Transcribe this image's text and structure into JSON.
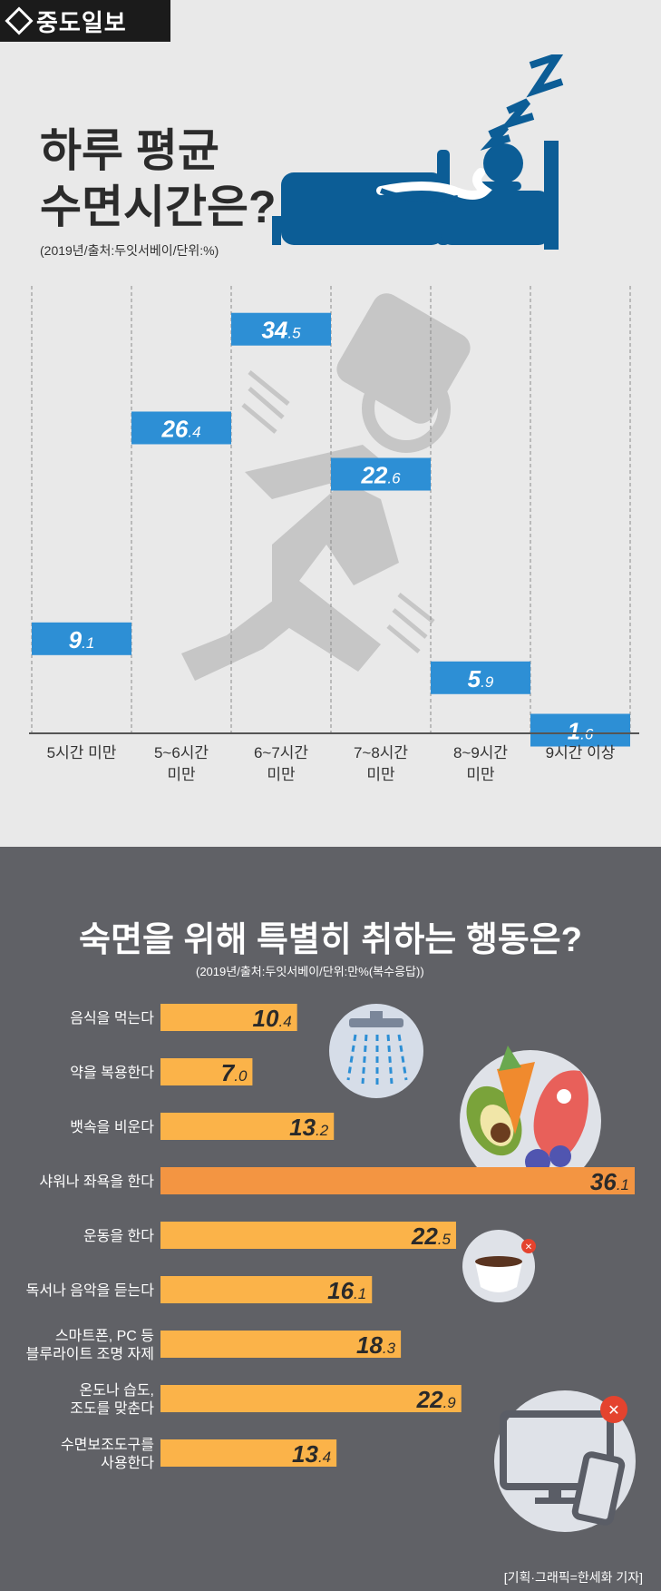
{
  "brand": {
    "name": "중도일보"
  },
  "section1": {
    "title_line1": "하루 평균",
    "title_line2": "수면시간은?",
    "note": "(2019년/출처:두잇서베이/단위:%)"
  },
  "section2": {
    "title": "숙면을 위해 특별히 취하는 행동은?",
    "note": "(2019년/출처:두잇서베이/단위:만%(복수응답))"
  },
  "credit": "[기획·그래픽=한세화 기자]",
  "colors": {
    "top_bg": "#e9e9e9",
    "bottom_bg": "#606166",
    "blue": "#2d8fd5",
    "navy": "#0c5d96",
    "yellow": "#fbb349",
    "orange": "#f39542",
    "silhouette": "#c6c6c6"
  },
  "icons": [
    "sleeping-person-icon",
    "walking-person-icon",
    "shower-icon",
    "food-plate-icon",
    "coffee-icon",
    "monitor-phone-icon"
  ],
  "chart_data": [
    {
      "type": "bar",
      "title": "하루 평균 수면시간은?",
      "unit": "%",
      "categories": [
        "5시간 미만",
        "5~6시간 미만",
        "6~7시간 미만",
        "7~8시간 미만",
        "8~9시간 미만",
        "9시간 이상"
      ],
      "category_lines": [
        [
          "5시간 미만"
        ],
        [
          "5~6시간",
          "미만"
        ],
        [
          "6~7시간",
          "미만"
        ],
        [
          "7~8시간",
          "미만"
        ],
        [
          "8~9시간",
          "미만"
        ],
        [
          "9시간 이상"
        ]
      ],
      "values": [
        9.1,
        26.4,
        34.5,
        22.6,
        5.9,
        1.6
      ],
      "value_labels": [
        [
          "9",
          ".1"
        ],
        [
          "26",
          ".4"
        ],
        [
          "34",
          ".5"
        ],
        [
          "22",
          ".6"
        ],
        [
          "5",
          ".9"
        ],
        [
          "1",
          ".6"
        ]
      ],
      "ylim": [
        0,
        35
      ]
    },
    {
      "type": "bar",
      "orientation": "horizontal",
      "title": "숙면을 위해 특별히 취하는 행동은?",
      "categories": [
        "음식을 먹는다",
        "약을 복용한다",
        "뱃속을 비운다",
        "샤워나 좌욕을 한다",
        "운동을 한다",
        "독서나 음악을 듣는다",
        "스마트폰, PC 등 블루라이트 조명 자제",
        "온도나 습도, 조도를 맞춘다",
        "수면보조도구를 사용한다"
      ],
      "category_lines": [
        [
          "음식을 먹는다"
        ],
        [
          "약을 복용한다"
        ],
        [
          "뱃속을 비운다"
        ],
        [
          "샤워나 좌욕을 한다"
        ],
        [
          "운동을 한다"
        ],
        [
          "독서나 음악을 듣는다"
        ],
        [
          "스마트폰, PC 등",
          "블루라이트 조명 자제"
        ],
        [
          "온도나 습도,",
          "조도를 맞춘다"
        ],
        [
          "수면보조도구를",
          "사용한다"
        ]
      ],
      "values": [
        10.4,
        7.0,
        13.2,
        36.1,
        22.5,
        16.1,
        18.3,
        22.9,
        13.4
      ],
      "value_labels": [
        [
          "10",
          ".4"
        ],
        [
          "7",
          ".0"
        ],
        [
          "13",
          ".2"
        ],
        [
          "36",
          ".1"
        ],
        [
          "22",
          ".5"
        ],
        [
          "16",
          ".1"
        ],
        [
          "18",
          ".3"
        ],
        [
          "22",
          ".9"
        ],
        [
          "13",
          ".4"
        ]
      ],
      "highlight_index": 3
    }
  ]
}
